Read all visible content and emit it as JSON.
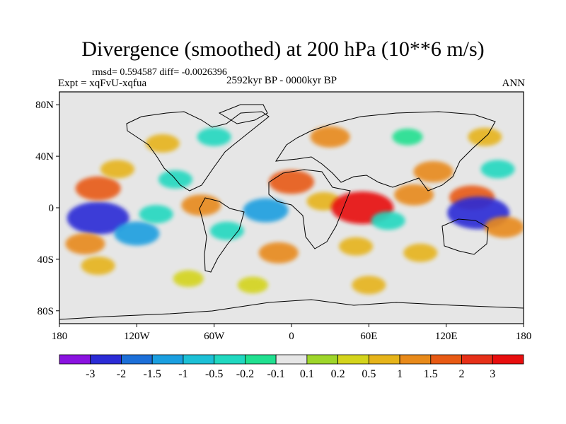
{
  "chart_data": {
    "type": "heatmap",
    "title": "Divergence (smoothed) at 200 hPa (10**6 m/s)",
    "stats_line": "rmsd= 0.594587 diff= -0.0026396",
    "experiment_label": "Expt = xqFvU-xqfua",
    "period_label": "2592kyr BP - 0000kyr BP",
    "season_label": "ANN",
    "xlim": [
      -180,
      180
    ],
    "ylim": [
      -90,
      90
    ],
    "x_ticks": [
      {
        "value": -180,
        "label": "180"
      },
      {
        "value": -120,
        "label": "120W"
      },
      {
        "value": -60,
        "label": "60W"
      },
      {
        "value": 0,
        "label": "0"
      },
      {
        "value": 60,
        "label": "60E"
      },
      {
        "value": 120,
        "label": "120E"
      },
      {
        "value": 180,
        "label": "180"
      }
    ],
    "y_ticks": [
      {
        "value": 80,
        "label": "80N"
      },
      {
        "value": 40,
        "label": "40N"
      },
      {
        "value": 0,
        "label": "0"
      },
      {
        "value": -40,
        "label": "40S"
      },
      {
        "value": -80,
        "label": "80S"
      }
    ],
    "colorbar": {
      "labels": [
        "-3",
        "-2",
        "-1.5",
        "-1",
        "-0.5",
        "-0.2",
        "-0.1",
        "0.1",
        "0.2",
        "0.5",
        "1",
        "1.5",
        "2",
        "3"
      ],
      "colors": [
        "#8a12e0",
        "#2b2bd6",
        "#1c6fd8",
        "#1a9fe0",
        "#1cc0d6",
        "#20d8c0",
        "#20e090",
        "#e6e6e6",
        "#9ed62a",
        "#d4d41c",
        "#e6b41a",
        "#e88a1a",
        "#e85a14",
        "#e63018",
        "#e80e0e"
      ]
    },
    "anomalies": [
      {
        "lon": -150,
        "lat": -8,
        "value": -3
      },
      {
        "lon": -120,
        "lat": -20,
        "value": -1.5
      },
      {
        "lon": -105,
        "lat": -5,
        "value": -0.5
      },
      {
        "lon": -150,
        "lat": 15,
        "value": 1.5
      },
      {
        "lon": -160,
        "lat": -28,
        "value": 1
      },
      {
        "lon": -135,
        "lat": 30,
        "value": 0.5
      },
      {
        "lon": -90,
        "lat": 22,
        "value": -0.5
      },
      {
        "lon": -70,
        "lat": 2,
        "value": 1
      },
      {
        "lon": -50,
        "lat": -18,
        "value": -0.5
      },
      {
        "lon": -20,
        "lat": -2,
        "value": -1.5
      },
      {
        "lon": 0,
        "lat": 20,
        "value": 1.5
      },
      {
        "lon": 25,
        "lat": 5,
        "value": 0.5
      },
      {
        "lon": 55,
        "lat": 0,
        "value": 3
      },
      {
        "lon": 75,
        "lat": -10,
        "value": -0.5
      },
      {
        "lon": 95,
        "lat": 10,
        "value": 1
      },
      {
        "lon": 110,
        "lat": 28,
        "value": 1
      },
      {
        "lon": 140,
        "lat": 8,
        "value": 1.5
      },
      {
        "lon": 145,
        "lat": -4,
        "value": -3
      },
      {
        "lon": 165,
        "lat": -15,
        "value": 1
      },
      {
        "lon": 160,
        "lat": 30,
        "value": -0.5
      },
      {
        "lon": -10,
        "lat": -35,
        "value": 1
      },
      {
        "lon": 50,
        "lat": -30,
        "value": 0.5
      },
      {
        "lon": 100,
        "lat": -35,
        "value": 0.5
      },
      {
        "lon": -150,
        "lat": -45,
        "value": 0.5
      },
      {
        "lon": 30,
        "lat": 55,
        "value": 1
      },
      {
        "lon": -60,
        "lat": 55,
        "value": -0.5
      },
      {
        "lon": -100,
        "lat": 50,
        "value": 0.5
      },
      {
        "lon": 150,
        "lat": 55,
        "value": 0.5
      },
      {
        "lon": 90,
        "lat": 55,
        "value": -0.2
      },
      {
        "lon": -30,
        "lat": -60,
        "value": 0.2
      },
      {
        "lon": 60,
        "lat": -60,
        "value": 0.5
      },
      {
        "lon": -80,
        "lat": -55,
        "value": 0.2
      }
    ]
  }
}
